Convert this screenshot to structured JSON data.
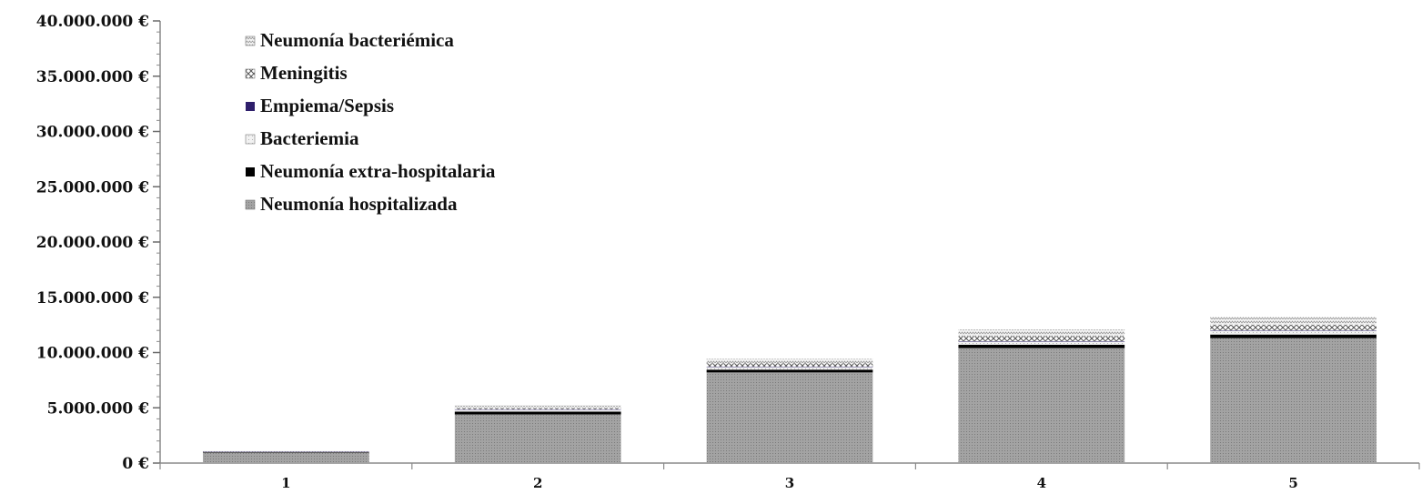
{
  "chart_data": {
    "type": "bar",
    "stacked": true,
    "title": "",
    "xlabel": "",
    "ylabel": "",
    "categories": [
      "1",
      "2",
      "3",
      "4",
      "5"
    ],
    "ylim": [
      0,
      40000000
    ],
    "yticks": [
      0,
      5000000,
      10000000,
      15000000,
      20000000,
      25000000,
      30000000,
      35000000,
      40000000
    ],
    "ytick_labels": [
      "0 €",
      "5.000.000 €",
      "10.000.000 €",
      "15.000.000 €",
      "20.000.000 €",
      "25.000.000 €",
      "30.000.000 €",
      "35.000.000 €",
      "40.000.000 €"
    ],
    "grid": false,
    "legend_position": "top-left",
    "series": [
      {
        "name": "Neumonía hospitalizada",
        "values": [
          950000,
          4400000,
          8200000,
          10400000,
          11300000
        ],
        "color": "#9a9a9a",
        "pattern": "dense-dots"
      },
      {
        "name": "Neumonía extra-hospitalaria",
        "values": [
          50000,
          250000,
          250000,
          300000,
          330000
        ],
        "color": "#000000",
        "pattern": "solid"
      },
      {
        "name": "Bacteriemia",
        "values": [
          30000,
          200000,
          250000,
          300000,
          350000
        ],
        "color": "#e4e4e4",
        "pattern": "light-dots"
      },
      {
        "name": "Empiema/Sepsis",
        "values": [
          10000,
          20000,
          30000,
          30000,
          30000
        ],
        "color": "#2e1f6b",
        "pattern": "solid"
      },
      {
        "name": "Meningitis",
        "values": [
          20000,
          130000,
          300000,
          450000,
          500000
        ],
        "color": "#c8c8c8",
        "pattern": "crosshatch"
      },
      {
        "name": "Neumonía bacteriémica",
        "values": [
          40000,
          200000,
          400000,
          600000,
          700000
        ],
        "color": "#dcdcdc",
        "pattern": "zigzag"
      }
    ],
    "legend_order": [
      "Neumonía bacteriémica",
      "Meningitis",
      "Empiema/Sepsis",
      "Bacteriemia",
      "Neumonía extra-hospitalaria",
      "Neumonía hospitalizada"
    ]
  }
}
